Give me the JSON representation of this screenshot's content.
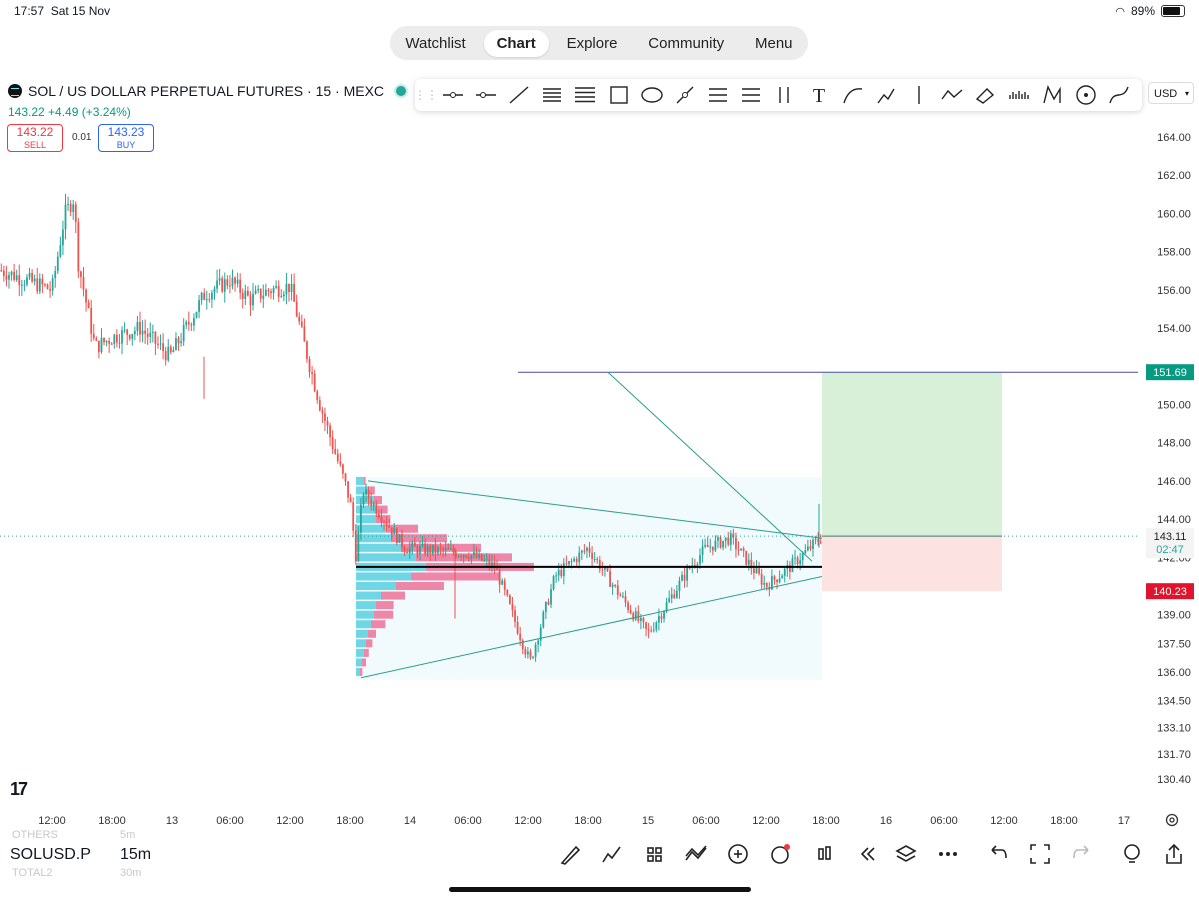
{
  "status_bar": {
    "time": "17:57",
    "date": "Sat 15 Nov",
    "battery": "89%"
  },
  "nav": {
    "tabs": [
      "Watchlist",
      "Chart",
      "Explore",
      "Community",
      "Menu"
    ],
    "active": "Chart"
  },
  "symbol": {
    "title": "SOL / US DOLLAR PERPETUAL FUTURES · 15 · MEXC",
    "change": "143.22  +4.49 (+3.24%)",
    "sell_price": "143.22",
    "sell_label": "SELL",
    "spread": "0.01",
    "buy_price": "143.23",
    "buy_label": "BUY"
  },
  "drawing_toolbar": {
    "tools": [
      "grip-icon",
      "horizontal-ray-icon",
      "horizontal-line-icon",
      "trend-line-icon",
      "fib-retracement-icon",
      "parallel-channel-icon",
      "rectangle-icon",
      "ellipse-icon",
      "path-icon",
      "fib-channel-icon",
      "regression-icon",
      "pitchfork-icon",
      "text-icon",
      "brush-icon",
      "arrow-icon",
      "vertical-line-icon",
      "xabcd-icon",
      "eraser-icon",
      "volume-profile-icon",
      "pattern-icon",
      "circle-target-icon",
      "curve-icon"
    ]
  },
  "currency": "USD",
  "colors": {
    "up": "#26a69a",
    "down": "#ef5350",
    "accent": "#2962ff",
    "target_zone": "#d9f0d8",
    "stop_zone": "#fde2e2"
  },
  "price_scale": {
    "labels": [
      "164.00",
      "162.00",
      "160.00",
      "158.00",
      "156.00",
      "154.00",
      "150.00",
      "148.00",
      "146.00",
      "144.00",
      "142.00",
      "139.00",
      "137.50",
      "136.00",
      "134.50",
      "133.10",
      "131.70",
      "130.40"
    ],
    "target_label": "151.69",
    "current_label": "143.11",
    "countdown_label": "02:47",
    "stop_label": "140.23"
  },
  "time_axis": {
    "labels": [
      "12:00",
      "18:00",
      "13",
      "06:00",
      "12:00",
      "18:00",
      "14",
      "06:00",
      "12:00",
      "18:00",
      "15",
      "06:00",
      "12:00",
      "18:00",
      "16",
      "06:00",
      "12:00",
      "18:00",
      "17"
    ]
  },
  "chart_data": {
    "type": "candlestick",
    "instrument": "SOL / US DOLLAR PERPETUAL FUTURES · 15 · MEXC",
    "interval": "15",
    "ylim": [
      130.4,
      164.0
    ],
    "close_path": [
      [
        "12:00 (day 12)",
        156.0
      ],
      [
        "~13:30",
        160.0
      ],
      [
        "~14:30",
        160.8
      ],
      [
        "~15:00",
        157.5
      ],
      [
        "~16:30",
        153.0
      ],
      [
        "18:00 (day 12)",
        153.5
      ],
      [
        "~21:00",
        154.0
      ],
      [
        "13 (00:00)",
        152.5
      ],
      [
        "~04:00",
        155.8
      ],
      [
        "06:00 (day 13)",
        156.5
      ],
      [
        "~08:00",
        155.5
      ],
      [
        "~10:00",
        156.0
      ],
      [
        "12:00 (day 13)",
        156.2
      ],
      [
        "~14:00",
        153.0
      ],
      [
        "~16:00",
        150.0
      ],
      [
        "18:00 (day 13)",
        145.0
      ],
      [
        "~20:00",
        142.0
      ],
      [
        "~22:00",
        145.5
      ],
      [
        "14 (00:00)",
        142.5
      ],
      [
        "06:00 (day 14)",
        142.2
      ],
      [
        "~09:00",
        141.5
      ],
      [
        "12:00 (day 14)",
        136.5
      ],
      [
        "~14:00",
        141.0
      ],
      [
        "18:00 (day 14)",
        142.5
      ],
      [
        "~21:00",
        140.0
      ],
      [
        "15 (00:00)",
        138.0
      ],
      [
        "~03:00",
        141.5
      ],
      [
        "06:00 (day 15)",
        142.5
      ],
      [
        "~09:00",
        143.0
      ],
      [
        "12:00 (day 15)",
        140.5
      ],
      [
        "~15:00",
        141.5
      ],
      [
        "18:00 (day 15)",
        143.1
      ]
    ],
    "last_price": 143.11,
    "annotations": {
      "long_position": {
        "entry": 143.11,
        "target": 151.69,
        "stop": 140.23
      },
      "horizontal_level": 151.69,
      "point_of_control": 141.5,
      "triangle_upper_line": [
        [
          146.0,
          "~20:00 day 13"
        ],
        [
          143.0,
          "18:00 day 15"
        ]
      ],
      "triangle_lower_line": [
        [
          135.7,
          "~20:00 day 13"
        ],
        [
          141.0,
          "18:00 day 15"
        ]
      ],
      "diagonal_line": [
        [
          151.69,
          "~22:00 day 14"
        ],
        [
          141.8,
          "~17:30 day 15"
        ]
      ],
      "volume_profile": "fixed range from ~19:00 day 13 to 18:00 day 15"
    }
  },
  "bottom": {
    "symbol": "SOLUSD.P",
    "timeframe": "15m",
    "ghost_above_symbol": "OTHERS",
    "ghost_above_tf": "5m",
    "ghost_below_symbol": "TOTAL2",
    "ghost_below_tf": "30m",
    "tools": [
      "drawing-brush-icon",
      "indicators-icon",
      "templates-icon",
      "compare-icon",
      "add-icon",
      "alert-icon",
      "candle-type-icon",
      "replay-icon",
      "layers-icon",
      "more-icon",
      "undo-icon",
      "fullscreen-icon",
      "redo-icon",
      "ideas-icon",
      "share-icon"
    ]
  }
}
